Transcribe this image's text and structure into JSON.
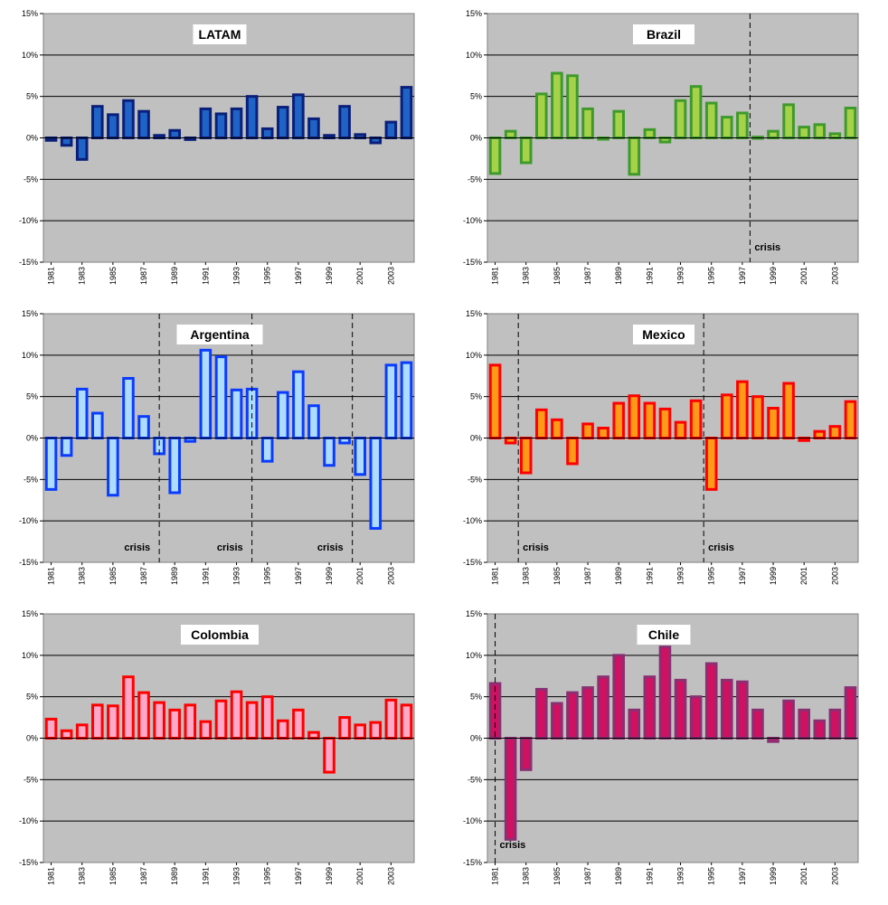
{
  "chart_data": [
    {
      "type": "bar",
      "title": "LATAM",
      "x": [
        1981,
        1982,
        1983,
        1984,
        1985,
        1986,
        1987,
        1988,
        1989,
        1990,
        1991,
        1992,
        1993,
        1994,
        1995,
        1996,
        1997,
        1998,
        1999,
        2000,
        2001,
        2002,
        2003,
        2004
      ],
      "values": [
        -0.3,
        -0.9,
        -2.6,
        3.8,
        2.8,
        4.5,
        3.2,
        0.3,
        0.9,
        -0.2,
        3.5,
        2.9,
        3.5,
        5.0,
        1.1,
        3.7,
        5.2,
        2.3,
        0.3,
        3.8,
        0.4,
        -0.6,
        1.9,
        6.1
      ],
      "ylim": [
        -15,
        15
      ],
      "yticks": [
        "-15%",
        "-10%",
        "-5%",
        "0%",
        "5%",
        "10%",
        "15%"
      ],
      "xtick_labels": [
        "1981",
        "1983",
        "1985",
        "1987",
        "1989",
        "1991",
        "1993",
        "1995",
        "1997",
        "1999",
        "2001",
        "2003"
      ],
      "crisis_years": [],
      "annotation": "",
      "fill": "#1f63c7",
      "stroke": "#0a1f7a",
      "plot_bg": "#c0c0c0",
      "grid": true
    },
    {
      "type": "bar",
      "title": "Brazil",
      "x": [
        1981,
        1982,
        1983,
        1984,
        1985,
        1986,
        1987,
        1988,
        1989,
        1990,
        1991,
        1992,
        1993,
        1994,
        1995,
        1996,
        1997,
        1998,
        1999,
        2000,
        2001,
        2002,
        2003,
        2004
      ],
      "values": [
        -4.3,
        0.8,
        -3.0,
        5.3,
        7.8,
        7.5,
        3.5,
        -0.1,
        3.2,
        -4.4,
        1.0,
        -0.5,
        4.5,
        6.2,
        4.2,
        2.5,
        3.0,
        0.1,
        0.8,
        4.0,
        1.3,
        1.6,
        0.5,
        3.6
      ],
      "ylim": [
        -15,
        15
      ],
      "yticks": [
        "-15%",
        "-10%",
        "-5%",
        "0%",
        "5%",
        "10%",
        "15%"
      ],
      "xtick_labels": [
        "1981",
        "1983",
        "1985",
        "1987",
        "1989",
        "1991",
        "1993",
        "1995",
        "1997",
        "1999",
        "2001",
        "2003"
      ],
      "crisis_years": [
        1998
      ],
      "annotation": "crisis",
      "fill": "#a6d24a",
      "stroke": "#3f9a2c",
      "plot_bg": "#c0c0c0",
      "grid": true
    },
    {
      "type": "bar",
      "title": "Argentina",
      "x": [
        1981,
        1982,
        1983,
        1984,
        1985,
        1986,
        1987,
        1988,
        1989,
        1990,
        1991,
        1992,
        1993,
        1994,
        1995,
        1996,
        1997,
        1998,
        1999,
        2000,
        2001,
        2002,
        2003,
        2004
      ],
      "values": [
        -6.2,
        -2.1,
        5.9,
        3.0,
        -6.9,
        7.2,
        2.6,
        -1.9,
        -6.6,
        -0.4,
        10.6,
        9.8,
        5.8,
        5.9,
        -2.8,
        5.5,
        8.0,
        3.9,
        -3.3,
        -0.6,
        -4.4,
        -10.9,
        8.8,
        9.1
      ],
      "ylim": [
        -15,
        15
      ],
      "yticks": [
        "-15%",
        "-10%",
        "-5%",
        "0%",
        "5%",
        "10%",
        "15%"
      ],
      "xtick_labels": [
        "1981",
        "1983",
        "1985",
        "1987",
        "1989",
        "1991",
        "1993",
        "1995",
        "1997",
        "1999",
        "2001",
        "2003"
      ],
      "crisis_years": [
        1988.5,
        1994.5,
        2001
      ],
      "annotation": "crisis",
      "fill": "#aedcff",
      "stroke": "#0a3cff",
      "plot_bg": "#c0c0c0",
      "grid": true
    },
    {
      "type": "bar",
      "title": "Mexico",
      "x": [
        1981,
        1982,
        1983,
        1984,
        1985,
        1986,
        1987,
        1988,
        1989,
        1990,
        1991,
        1992,
        1993,
        1994,
        1995,
        1996,
        1997,
        1998,
        1999,
        2000,
        2001,
        2002,
        2003,
        2004
      ],
      "values": [
        8.8,
        -0.6,
        -4.2,
        3.4,
        2.2,
        -3.1,
        1.7,
        1.2,
        4.2,
        5.1,
        4.2,
        3.5,
        1.9,
        4.5,
        -6.2,
        5.2,
        6.8,
        5.0,
        3.6,
        6.6,
        -0.3,
        0.8,
        1.4,
        4.4
      ],
      "ylim": [
        -15,
        15
      ],
      "yticks": [
        "-15%",
        "-10%",
        "-5%",
        "0%",
        "5%",
        "10%",
        "15%"
      ],
      "xtick_labels": [
        "1981",
        "1983",
        "1985",
        "1987",
        "1989",
        "1991",
        "1993",
        "1995",
        "1997",
        "1999",
        "2001",
        "2003"
      ],
      "crisis_years": [
        1983,
        1995
      ],
      "annotation": "crisis",
      "fill": "#ff9a18",
      "stroke": "#ff0000",
      "plot_bg": "#c0c0c0",
      "grid": true
    },
    {
      "type": "bar",
      "title": "Colombia",
      "x": [
        1981,
        1982,
        1983,
        1984,
        1985,
        1986,
        1987,
        1988,
        1989,
        1990,
        1991,
        1992,
        1993,
        1994,
        1995,
        1996,
        1997,
        1998,
        1999,
        2000,
        2001,
        2002,
        2003,
        2004
      ],
      "values": [
        2.3,
        0.9,
        1.6,
        4.0,
        3.9,
        7.4,
        5.5,
        4.3,
        3.4,
        4.0,
        2.0,
        4.5,
        5.6,
        4.3,
        5.0,
        2.1,
        3.4,
        0.7,
        -4.1,
        2.5,
        1.6,
        1.9,
        4.6,
        4.0
      ],
      "ylim": [
        -15,
        15
      ],
      "yticks": [
        "-15%",
        "-10%",
        "-5%",
        "0%",
        "5%",
        "10%",
        "15%"
      ],
      "xtick_labels": [
        "1981",
        "1983",
        "1985",
        "1987",
        "1989",
        "1991",
        "1993",
        "1995",
        "1997",
        "1999",
        "2001",
        "2003"
      ],
      "crisis_years": [],
      "annotation": "",
      "fill": "#ffa8c8",
      "stroke": "#ff0000",
      "plot_bg": "#c0c0c0",
      "grid": true
    },
    {
      "type": "bar",
      "title": "Chile",
      "x": [
        1981,
        1982,
        1983,
        1984,
        1985,
        1986,
        1987,
        1988,
        1989,
        1990,
        1991,
        1992,
        1993,
        1994,
        1995,
        1996,
        1997,
        1998,
        1999,
        2000,
        2001,
        2002,
        2003,
        2004
      ],
      "values": [
        6.6,
        -12.2,
        -3.8,
        5.9,
        4.2,
        5.5,
        6.1,
        7.4,
        10.0,
        3.4,
        7.4,
        11.0,
        7.0,
        5.0,
        9.0,
        7.0,
        6.8,
        3.4,
        -0.4,
        4.5,
        3.4,
        2.1,
        3.4,
        6.1
      ],
      "ylim": [
        -15,
        15
      ],
      "yticks": [
        "-15%",
        "-10%",
        "-5%",
        "0%",
        "5%",
        "10%",
        "15%"
      ],
      "xtick_labels": [
        "1981",
        "1983",
        "1985",
        "1987",
        "1989",
        "1991",
        "1993",
        "1995",
        "1997",
        "1999",
        "2001",
        "2003"
      ],
      "crisis_years": [
        1981.5
      ],
      "annotation": "crisis",
      "fill": "#d01060",
      "stroke": "#8a2f72",
      "plot_bg": "#c0c0c0",
      "grid": true
    }
  ]
}
